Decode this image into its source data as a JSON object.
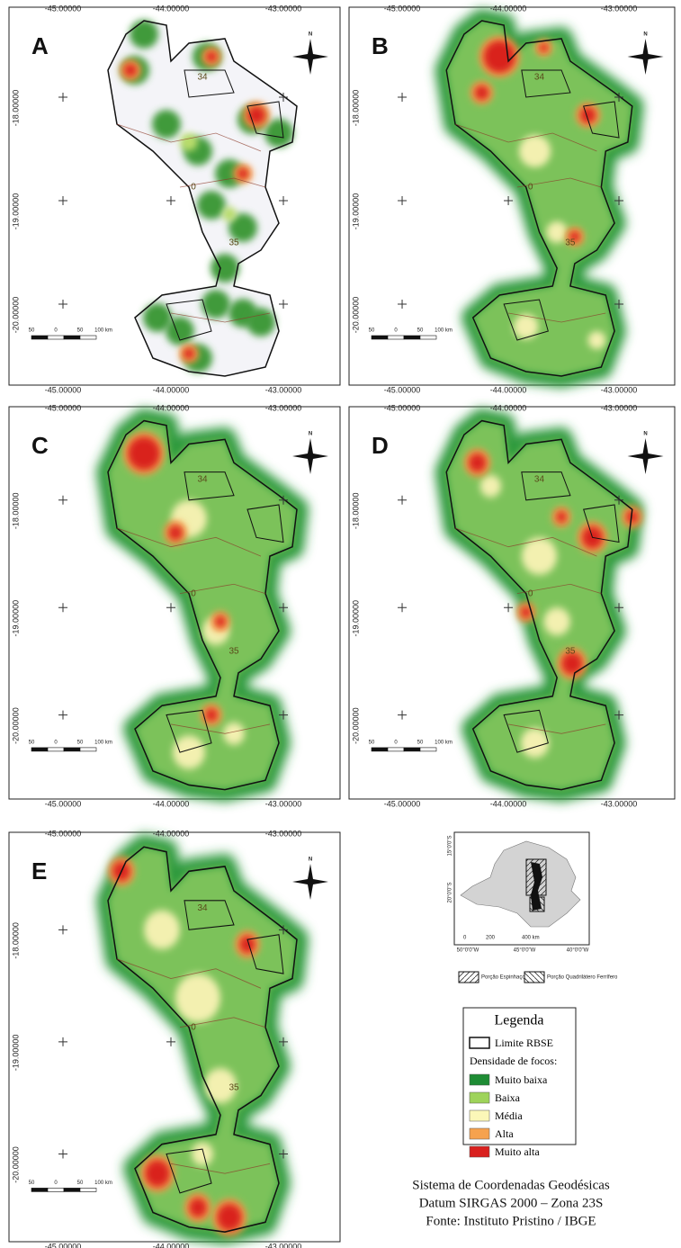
{
  "panels": [
    {
      "letter": "A",
      "top": [
        "-45.00000",
        "-44.00000",
        "-43.00000"
      ],
      "bottom": [
        "-45.00000",
        "-44.00000",
        "-43.00000"
      ],
      "left": [
        "-18.00000",
        "-19.00000",
        "-20.00000"
      ],
      "north": "N",
      "scale": [
        "50",
        "0",
        "50",
        "100 km"
      ],
      "zones": [
        "34",
        "0",
        "35"
      ]
    },
    {
      "letter": "B",
      "top": [
        "-45.00000",
        "-44.00000",
        "-43.00000"
      ],
      "bottom": [
        "-45.00000",
        "-44.00000",
        "-43.00000"
      ],
      "left": [
        "-18.00000",
        "-19.00000",
        "-20.00000"
      ],
      "north": "N",
      "scale": [
        "50",
        "0",
        "50",
        "100 km"
      ],
      "zones": [
        "34",
        "0",
        "35"
      ]
    },
    {
      "letter": "C",
      "top": [
        "-45.00000",
        "-44.00000",
        "-43.00000"
      ],
      "bottom": [
        "-45.00000",
        "-44.00000",
        "-43.00000"
      ],
      "left": [
        "-18.00000",
        "-19.00000",
        "-20.00000"
      ],
      "north": "N",
      "scale": [
        "50",
        "0",
        "50",
        "100 km"
      ],
      "zones": [
        "34",
        "0",
        "35"
      ]
    },
    {
      "letter": "D",
      "top": [
        "-45.00000",
        "-44.00000",
        "-43.00000"
      ],
      "bottom": [
        "-45.00000",
        "-44.00000",
        "-43.00000"
      ],
      "left": [
        "-18.00000",
        "-19.00000",
        "-20.00000"
      ],
      "north": "N",
      "scale": [
        "50",
        "0",
        "50",
        "100 km"
      ],
      "zones": [
        "34",
        "0",
        "35"
      ]
    },
    {
      "letter": "E",
      "top": [
        "-45.00000",
        "-44.00000",
        "-43.00000"
      ],
      "bottom": [
        "-45.00000",
        "-44.00000",
        "-43.00000"
      ],
      "left": [
        "-18.00000",
        "-19.00000",
        "-20.00000"
      ],
      "north": "N",
      "scale": [
        "50",
        "0",
        "50",
        "100 km"
      ],
      "zones": [
        "34",
        "0",
        "35"
      ]
    }
  ],
  "inset": {
    "lat": [
      "15°0'0\"S",
      "20°0'0\"S"
    ],
    "lon": [
      "50°0'0\"W",
      "45°0'0\"W",
      "40°0'0\"W"
    ],
    "scale": [
      "0",
      "200",
      "400 km"
    ],
    "hatch": [
      "Porção Espinhaço",
      "Porção Quadrilátero Ferrífero"
    ]
  },
  "legend": {
    "title": "Legenda",
    "boundary": "Limite RBSE",
    "subtitle": "Densidade de focos:",
    "items": [
      {
        "label": "Muito baixa",
        "color": "#1e8c34"
      },
      {
        "label": "Baixa",
        "color": "#9ed35a"
      },
      {
        "label": "Média",
        "color": "#fbf7b8"
      },
      {
        "label": "Alta",
        "color": "#f6a24e"
      },
      {
        "label": "Muito alta",
        "color": "#d9201e"
      }
    ]
  },
  "credits": [
    "Sistema de Coordenadas Geodésicas",
    "Datum SIRGAS 2000 – Zona 23S",
    "Fonte: Instituto Pristino / IBGE"
  ]
}
